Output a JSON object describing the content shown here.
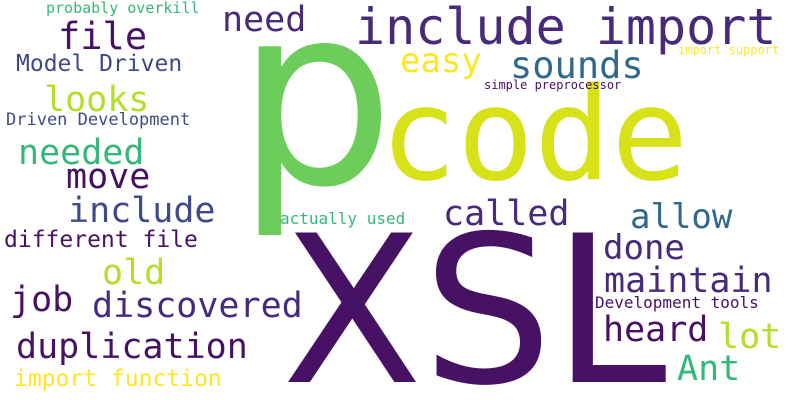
{
  "palette": {
    "dark_purple": "#471164",
    "purple": "#482a7b",
    "indigo": "#3e4a89",
    "slate": "#31688e",
    "teal": "#26828e",
    "green": "#35b779",
    "light_green": "#6ccd5a",
    "yellow_green": "#b5de2b",
    "yellow": "#d7e219",
    "bright_yellow": "#fde725"
  },
  "words": {
    "p": "p",
    "code": "code",
    "xsl": "XSL",
    "include_import": "include import",
    "need": "need",
    "file": "file",
    "easy": "easy",
    "sounds": "sounds",
    "model_driven": "Model Driven",
    "looks": "looks",
    "driven_development": "Driven Development",
    "needed": "needed",
    "move": "move",
    "include": "include",
    "called": "called",
    "allow": "allow",
    "done": "done",
    "different_file": "different file",
    "old": "old",
    "maintain": "maintain",
    "job": "job",
    "discovered": "discovered",
    "heard": "heard",
    "lot": "lot",
    "duplication": "duplication",
    "ant": "Ant",
    "import_function": "import function",
    "development_tools": "Development tools",
    "probably_overkill": "probably overkill",
    "import_support": "import support",
    "simple_preprocessor": "simple preprocessor",
    "actually_used": "actually used"
  }
}
